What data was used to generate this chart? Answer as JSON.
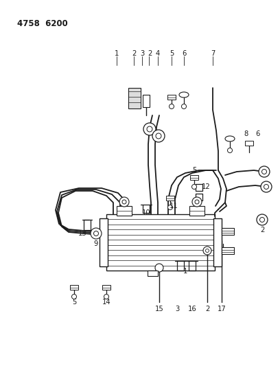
{
  "title": "4758  6200",
  "bg_color": "#ffffff",
  "line_color": "#000000",
  "fig_width": 4.08,
  "fig_height": 5.33,
  "dpi": 100
}
